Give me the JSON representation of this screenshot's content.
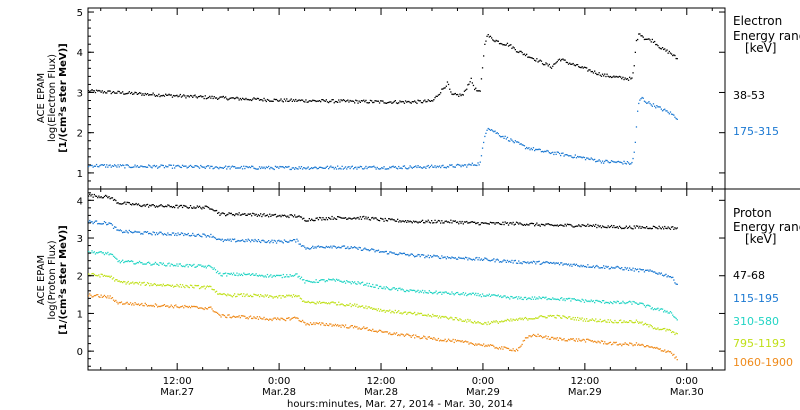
{
  "x_axis": {
    "title": "hours:minutes, Mar. 27, 2014 - Mar. 30, 2014",
    "ticks": [
      {
        "t": 12,
        "top": "12:00",
        "bottom": "Mar.27"
      },
      {
        "t": 24,
        "top": "0:00",
        "bottom": "Mar.28"
      },
      {
        "t": 36,
        "top": "12:00",
        "bottom": "Mar.28"
      },
      {
        "t": 48,
        "top": "0:00",
        "bottom": "Mar.29"
      },
      {
        "t": 60,
        "top": "12:00",
        "bottom": "Mar.29"
      },
      {
        "t": 72,
        "top": "0:00",
        "bottom": "Mar.30"
      }
    ]
  },
  "chart_data": [
    {
      "type": "scatter",
      "ylabel_lines": [
        "ACE EPAM",
        "log(Electron Flux)",
        "[1/(cm²s ster MeV)]"
      ],
      "legend_title_lines": [
        "Electron",
        "Energy ranges",
        "[keV]"
      ],
      "xlim": [
        1.5,
        76.5
      ],
      "ylim": [
        0.6,
        5.1
      ],
      "yticks": [
        1,
        2,
        3,
        4,
        5
      ],
      "series": [
        {
          "name": "38-53",
          "color": "#000000",
          "points": [
            [
              1.5,
              3.05
            ],
            [
              6,
              3.0
            ],
            [
              12,
              2.93
            ],
            [
              18,
              2.87
            ],
            [
              24,
              2.82
            ],
            [
              30,
              2.8
            ],
            [
              36,
              2.78
            ],
            [
              40,
              2.78
            ],
            [
              42,
              2.8
            ],
            [
              43,
              3.05
            ],
            [
              43.8,
              3.25
            ],
            [
              44.2,
              2.95
            ],
            [
              45.6,
              2.95
            ],
            [
              46.5,
              3.35
            ],
            [
              47,
              3.1
            ],
            [
              47.6,
              3.0
            ],
            [
              48.1,
              4.15
            ],
            [
              48.4,
              4.45
            ],
            [
              49,
              4.35
            ],
            [
              50,
              4.25
            ],
            [
              51,
              4.2
            ],
            [
              52,
              4.05
            ],
            [
              53,
              3.95
            ],
            [
              54,
              3.85
            ],
            [
              55,
              3.75
            ],
            [
              56,
              3.65
            ],
            [
              57,
              3.85
            ],
            [
              58,
              3.75
            ],
            [
              60,
              3.6
            ],
            [
              62,
              3.45
            ],
            [
              64,
              3.38
            ],
            [
              65.5,
              3.35
            ],
            [
              65.7,
              3.6
            ],
            [
              66,
              4.3
            ],
            [
              66.4,
              4.5
            ],
            [
              67,
              4.35
            ],
            [
              68,
              4.3
            ],
            [
              69,
              4.1
            ],
            [
              70,
              4.0
            ],
            [
              70.8,
              3.85
            ]
          ]
        },
        {
          "name": "175-315",
          "color": "#1a78d2",
          "points": [
            [
              1.5,
              1.2
            ],
            [
              6,
              1.18
            ],
            [
              12,
              1.17
            ],
            [
              18,
              1.15
            ],
            [
              24,
              1.14
            ],
            [
              30,
              1.15
            ],
            [
              36,
              1.15
            ],
            [
              40,
              1.16
            ],
            [
              44,
              1.18
            ],
            [
              46,
              1.2
            ],
            [
              47.6,
              1.25
            ],
            [
              48.2,
              2.0
            ],
            [
              48.5,
              2.15
            ],
            [
              49,
              2.08
            ],
            [
              50,
              1.95
            ],
            [
              51,
              1.85
            ],
            [
              52,
              1.75
            ],
            [
              53,
              1.65
            ],
            [
              54,
              1.6
            ],
            [
              55,
              1.55
            ],
            [
              56,
              1.52
            ],
            [
              58,
              1.45
            ],
            [
              60,
              1.38
            ],
            [
              62,
              1.3
            ],
            [
              64,
              1.28
            ],
            [
              65.5,
              1.25
            ],
            [
              65.8,
              1.6
            ],
            [
              66.2,
              2.7
            ],
            [
              66.6,
              2.9
            ],
            [
              67,
              2.8
            ],
            [
              68,
              2.7
            ],
            [
              69,
              2.6
            ],
            [
              70,
              2.5
            ],
            [
              70.8,
              2.38
            ]
          ]
        }
      ]
    },
    {
      "type": "scatter",
      "ylabel_lines": [
        "ACE EPAM",
        "log(Proton Flux)",
        "[1/(cm²s ster MeV)]"
      ],
      "legend_title_lines": [
        "Proton",
        "Energy ranges",
        "[keV]"
      ],
      "xlim": [
        1.5,
        76.5
      ],
      "ylim": [
        -0.5,
        4.3
      ],
      "yticks": [
        0,
        1,
        2,
        3,
        4
      ],
      "series": [
        {
          "name": "47-68",
          "color": "#000000",
          "points": [
            [
              1.5,
              4.15
            ],
            [
              4,
              4.1
            ],
            [
              5,
              3.95
            ],
            [
              8,
              3.88
            ],
            [
              12,
              3.85
            ],
            [
              16,
              3.82
            ],
            [
              17,
              3.65
            ],
            [
              20,
              3.65
            ],
            [
              24,
              3.6
            ],
            [
              26,
              3.6
            ],
            [
              27,
              3.5
            ],
            [
              30,
              3.55
            ],
            [
              34,
              3.55
            ],
            [
              36,
              3.5
            ],
            [
              40,
              3.45
            ],
            [
              44,
              3.45
            ],
            [
              48,
              3.4
            ],
            [
              52,
              3.4
            ],
            [
              56,
              3.35
            ],
            [
              60,
              3.35
            ],
            [
              64,
              3.3
            ],
            [
              68,
              3.3
            ],
            [
              70.8,
              3.28
            ]
          ]
        },
        {
          "name": "115-195",
          "color": "#1a78d2",
          "points": [
            [
              1.5,
              3.45
            ],
            [
              4,
              3.4
            ],
            [
              5,
              3.2
            ],
            [
              8,
              3.15
            ],
            [
              12,
              3.12
            ],
            [
              16,
              3.08
            ],
            [
              17,
              2.95
            ],
            [
              20,
              2.95
            ],
            [
              24,
              2.92
            ],
            [
              26,
              2.95
            ],
            [
              27,
              2.75
            ],
            [
              30,
              2.8
            ],
            [
              34,
              2.72
            ],
            [
              36,
              2.65
            ],
            [
              40,
              2.55
            ],
            [
              44,
              2.5
            ],
            [
              48,
              2.45
            ],
            [
              52,
              2.38
            ],
            [
              56,
              2.35
            ],
            [
              60,
              2.28
            ],
            [
              64,
              2.22
            ],
            [
              68,
              2.12
            ],
            [
              70,
              2.0
            ],
            [
              70.8,
              1.8
            ]
          ]
        },
        {
          "name": "310-580",
          "color": "#22d4c4",
          "points": [
            [
              1.5,
              2.65
            ],
            [
              4,
              2.6
            ],
            [
              5,
              2.4
            ],
            [
              8,
              2.35
            ],
            [
              12,
              2.3
            ],
            [
              16,
              2.25
            ],
            [
              17,
              2.05
            ],
            [
              20,
              2.05
            ],
            [
              24,
              2.0
            ],
            [
              26,
              2.05
            ],
            [
              27,
              1.85
            ],
            [
              30,
              1.9
            ],
            [
              34,
              1.8
            ],
            [
              36,
              1.7
            ],
            [
              40,
              1.6
            ],
            [
              44,
              1.55
            ],
            [
              48,
              1.5
            ],
            [
              52,
              1.42
            ],
            [
              56,
              1.42
            ],
            [
              60,
              1.35
            ],
            [
              64,
              1.3
            ],
            [
              66,
              1.3
            ],
            [
              68,
              1.15
            ],
            [
              70,
              1.05
            ],
            [
              70.8,
              0.85
            ]
          ]
        },
        {
          "name": "795-1193",
          "color": "#c0e01a",
          "points": [
            [
              1.5,
              2.05
            ],
            [
              4,
              2.0
            ],
            [
              5,
              1.85
            ],
            [
              8,
              1.8
            ],
            [
              12,
              1.75
            ],
            [
              16,
              1.7
            ],
            [
              17,
              1.5
            ],
            [
              20,
              1.5
            ],
            [
              24,
              1.45
            ],
            [
              26,
              1.5
            ],
            [
              27,
              1.3
            ],
            [
              30,
              1.3
            ],
            [
              34,
              1.2
            ],
            [
              36,
              1.1
            ],
            [
              40,
              1.0
            ],
            [
              44,
              0.9
            ],
            [
              48,
              0.75
            ],
            [
              52,
              0.85
            ],
            [
              54,
              0.9
            ],
            [
              56,
              0.95
            ],
            [
              60,
              0.85
            ],
            [
              64,
              0.8
            ],
            [
              66,
              0.8
            ],
            [
              68,
              0.65
            ],
            [
              70,
              0.55
            ],
            [
              70.8,
              0.45
            ]
          ]
        },
        {
          "name": "1060-1900",
          "color": "#ef8a1a",
          "points": [
            [
              1.5,
              1.5
            ],
            [
              4,
              1.45
            ],
            [
              5,
              1.3
            ],
            [
              8,
              1.25
            ],
            [
              12,
              1.2
            ],
            [
              16,
              1.15
            ],
            [
              17,
              0.95
            ],
            [
              20,
              0.92
            ],
            [
              24,
              0.85
            ],
            [
              26,
              0.9
            ],
            [
              27,
              0.75
            ],
            [
              30,
              0.72
            ],
            [
              34,
              0.62
            ],
            [
              36,
              0.52
            ],
            [
              40,
              0.4
            ],
            [
              44,
              0.3
            ],
            [
              48,
              0.18
            ],
            [
              50,
              0.1
            ],
            [
              52,
              0.05
            ],
            [
              53,
              0.35
            ],
            [
              54,
              0.45
            ],
            [
              56,
              0.35
            ],
            [
              60,
              0.3
            ],
            [
              64,
              0.2
            ],
            [
              66,
              0.2
            ],
            [
              68,
              0.1
            ],
            [
              70,
              0.0
            ],
            [
              70.8,
              -0.2
            ]
          ]
        }
      ]
    }
  ]
}
